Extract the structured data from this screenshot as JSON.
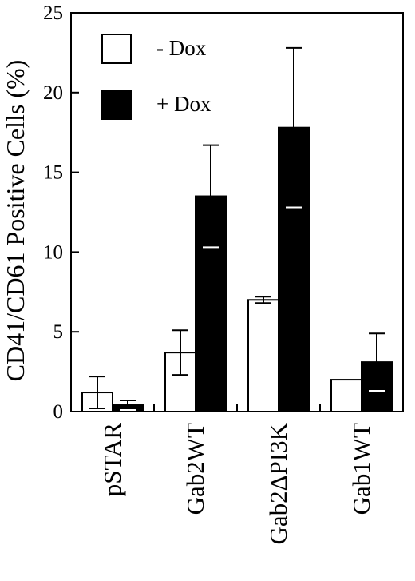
{
  "chart_data": {
    "type": "bar",
    "ylabel": "CD41/CD61 Positive Cells (%)",
    "xlabel": "",
    "ylim": [
      0,
      25
    ],
    "yticks": [
      0,
      5,
      10,
      15,
      20,
      25
    ],
    "categories": [
      "pSTAR",
      "Gab2WT",
      "Gab2ΔPI3K",
      "Gab1WT"
    ],
    "series": [
      {
        "name": "- Dox",
        "color": "#ffffff",
        "values": [
          1.2,
          3.7,
          7.0,
          2.0
        ],
        "errors": [
          1.0,
          1.4,
          0.2,
          0.0
        ]
      },
      {
        "name": "+ Dox",
        "color": "#000000",
        "values": [
          0.4,
          13.5,
          17.8,
          3.1
        ],
        "errors": [
          0.3,
          3.2,
          5.0,
          1.8
        ]
      }
    ],
    "legend_position": "top-left",
    "grid": false
  }
}
